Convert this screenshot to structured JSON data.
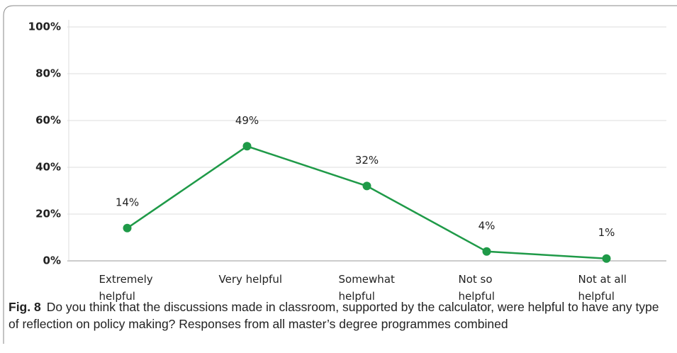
{
  "chart_data": {
    "type": "line",
    "categories": [
      "Extremely\nhelpful",
      "Very helpful",
      "Somewhat\nhelpful",
      "Not so\nhelpful",
      "Not at all\nhelpful"
    ],
    "series": [
      {
        "color": "#1f9a48",
        "values": [
          14,
          49,
          32,
          4,
          1
        ],
        "value_labels": [
          "14%",
          "49%",
          "32%",
          "4%",
          "1%"
        ]
      }
    ],
    "ylim": [
      0,
      100
    ],
    "yticks": [
      {
        "value": 0,
        "label": "0%"
      },
      {
        "value": 20,
        "label": "20%"
      },
      {
        "value": 40,
        "label": "40%"
      },
      {
        "value": 60,
        "label": "60%"
      },
      {
        "value": 80,
        "label": "80%"
      },
      {
        "value": 100,
        "label": "100%"
      }
    ],
    "grid": true,
    "caption_label": "Fig. 8",
    "caption": "Do you think that the discussions made in classroom, supported by the calculator, were helpful to have any type of reflection on policy making? Responses from all master’s degree programmes combined"
  }
}
